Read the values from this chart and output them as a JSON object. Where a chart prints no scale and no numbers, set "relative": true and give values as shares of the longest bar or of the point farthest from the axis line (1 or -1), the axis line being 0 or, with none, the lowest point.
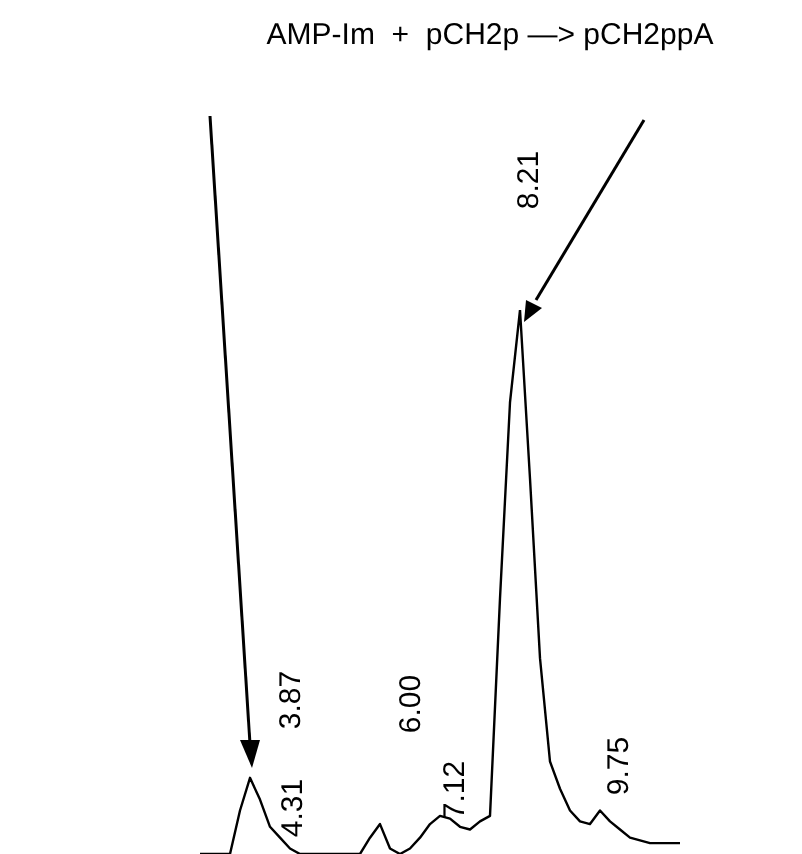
{
  "chart_data": {
    "type": "line",
    "relative": true,
    "title": "AMP-Im  +  pCH2p —> pCH2ppA",
    "categories": [
      null,
      null,
      null,
      null,
      null,
      null,
      null,
      null,
      null,
      null,
      null,
      null,
      null,
      null,
      null,
      null,
      null,
      null,
      null,
      null,
      null,
      null,
      null,
      null,
      null,
      null,
      null,
      null,
      null,
      null,
      null,
      null,
      null,
      null,
      null,
      null,
      null,
      null,
      null,
      null,
      null,
      null,
      null,
      null,
      null,
      null,
      null,
      null,
      null
    ],
    "series": [
      {
        "color": "#000000",
        "values": [
          0,
          0,
          0,
          0,
          0.08,
          0.14,
          0.1,
          0.05,
          0.03,
          0.01,
          0,
          0,
          0,
          0,
          0,
          0,
          0,
          0.03,
          0.055,
          0.01,
          0,
          0.01,
          0.03,
          0.055,
          0.07,
          0.065,
          0.05,
          0.045,
          0.06,
          0.07,
          0.47,
          0.83,
          1,
          0.69,
          0.36,
          0.17,
          0.12,
          0.08,
          0.06,
          0.055,
          0.08,
          0.06,
          0.045,
          0.03,
          0.025,
          0.02,
          0.02,
          0.02,
          0.02
        ]
      }
    ],
    "annotations": [
      "3.87",
      "4.31",
      "6.00",
      "7.12",
      "8.21",
      "9.75"
    ],
    "marker": "none"
  }
}
